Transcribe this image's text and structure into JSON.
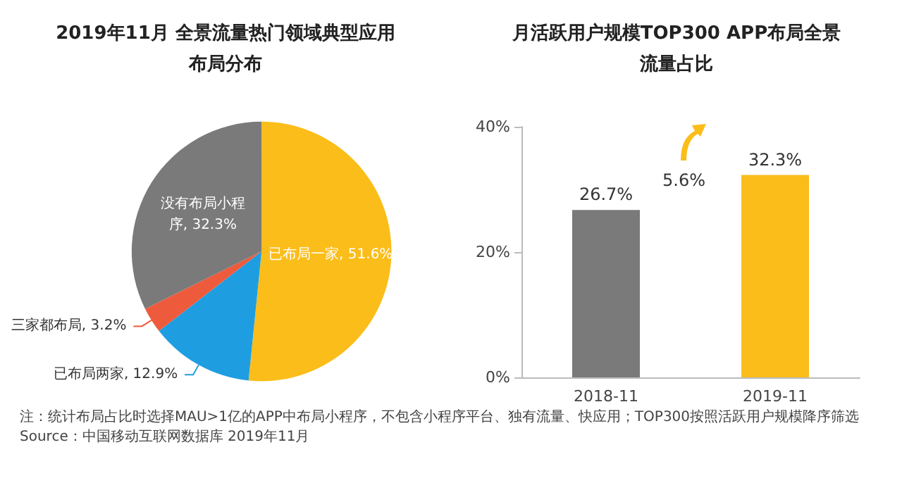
{
  "chart_data": [
    {
      "type": "pie",
      "title": "2019年11月 全景流量热门领域典型应用布局分布",
      "categories": [
        "已布局一家",
        "已布局两家",
        "三家都布局",
        "没有布局小程序"
      ],
      "values": [
        51.6,
        12.9,
        3.2,
        32.3
      ],
      "value_labels": [
        "51.6%",
        "12.9%",
        "3.2%",
        "32.3%"
      ],
      "colors": [
        "#fbbd1a",
        "#1e9ee0",
        "#ee5a3c",
        "#7a7a7a"
      ],
      "legend": false,
      "annotations": [
        "注：统计布局占比时选择MAU>1亿的APP中布局小程序，不包含小程序平台、独有流量、快应用；TOP300按照活跃用户规模降序筛选",
        "Source：中国移动互联网数据库 2019年11月"
      ]
    },
    {
      "type": "bar",
      "title": "月活跃用户规模TOP300 APP布局全景流量占比",
      "categories": [
        "2018-11",
        "2019-11"
      ],
      "values": [
        26.7,
        32.3
      ],
      "colors": [
        "#7a7a7a",
        "#fbbd1a"
      ],
      "value_labels": [
        "26.7%",
        "32.3%"
      ],
      "ylim": [
        0,
        40
      ],
      "yticks": [
        {
          "value": 0,
          "label": "0%"
        },
        {
          "value": 20,
          "label": "20%"
        },
        {
          "value": 40,
          "label": "40%"
        }
      ],
      "grid": false,
      "legend": false,
      "annotations": [
        "5.6%"
      ]
    }
  ]
}
